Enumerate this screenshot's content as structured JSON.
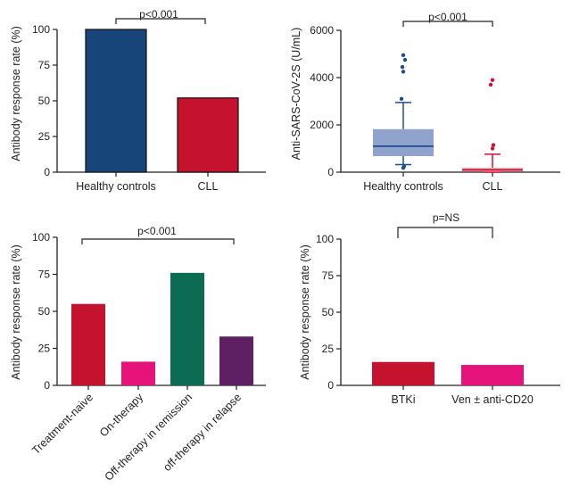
{
  "chart_data": [
    {
      "type": "bar",
      "title": "",
      "xlabel": "",
      "ylabel": "Antibody response rate (%)",
      "ylim": [
        0,
        100
      ],
      "yticks": [
        0,
        25,
        50,
        75,
        100
      ],
      "categories": [
        "Healthy controls",
        "CLL"
      ],
      "values": [
        100,
        52
      ],
      "colors": [
        "#17457a",
        "#c4122f"
      ],
      "significance": "p<0.001",
      "bar_borders": true
    },
    {
      "type": "box",
      "title": "",
      "xlabel": "",
      "ylabel": "Anti-SARS-CoV-2S (U/mL)",
      "ylim": [
        0,
        6000
      ],
      "yticks": [
        0,
        2000,
        4000,
        6000
      ],
      "categories": [
        "Healthy controls",
        "CLL"
      ],
      "boxes": [
        {
          "name": "Healthy controls",
          "whisker_low": 320,
          "q1": 680,
          "median": 1100,
          "q3": 1820,
          "whisker_high": 2950,
          "box_color": "#8fa3cc",
          "line_color": "#1f4e8c",
          "outliers": [
            180,
            250,
            3100,
            4250,
            4450,
            4750,
            4950
          ]
        },
        {
          "name": "CLL",
          "whisker_low": 0,
          "q1": 20,
          "median": 100,
          "q3": 180,
          "whisker_high": 760,
          "box_color": "#e8a1a6",
          "line_color": "#d10f3a",
          "outliers": [
            1000,
            1150,
            3700,
            3900
          ]
        }
      ],
      "significance": "p<0.001"
    },
    {
      "type": "bar",
      "title": "",
      "xlabel": "",
      "ylabel": "Antibody response rate (%)",
      "ylim": [
        0,
        100
      ],
      "yticks": [
        0,
        25,
        50,
        75,
        100
      ],
      "categories": [
        "Treatment-naive",
        "On-therapy",
        "Off-therapy in remission",
        "off-therapy in relapse"
      ],
      "values": [
        55,
        16,
        76,
        33
      ],
      "colors": [
        "#c4122f",
        "#e6147a",
        "#0b6b53",
        "#5e2063"
      ],
      "significance": "p<0.001"
    },
    {
      "type": "bar",
      "title": "",
      "xlabel": "",
      "ylabel": "Antibody response rate (%)",
      "ylim": [
        0,
        100
      ],
      "yticks": [
        0,
        25,
        50,
        75,
        100
      ],
      "categories": [
        "BTKi",
        "Ven ± anti-CD20"
      ],
      "values": [
        16,
        14
      ],
      "colors": [
        "#c4122f",
        "#e6147a"
      ],
      "significance": "p=NS"
    }
  ]
}
